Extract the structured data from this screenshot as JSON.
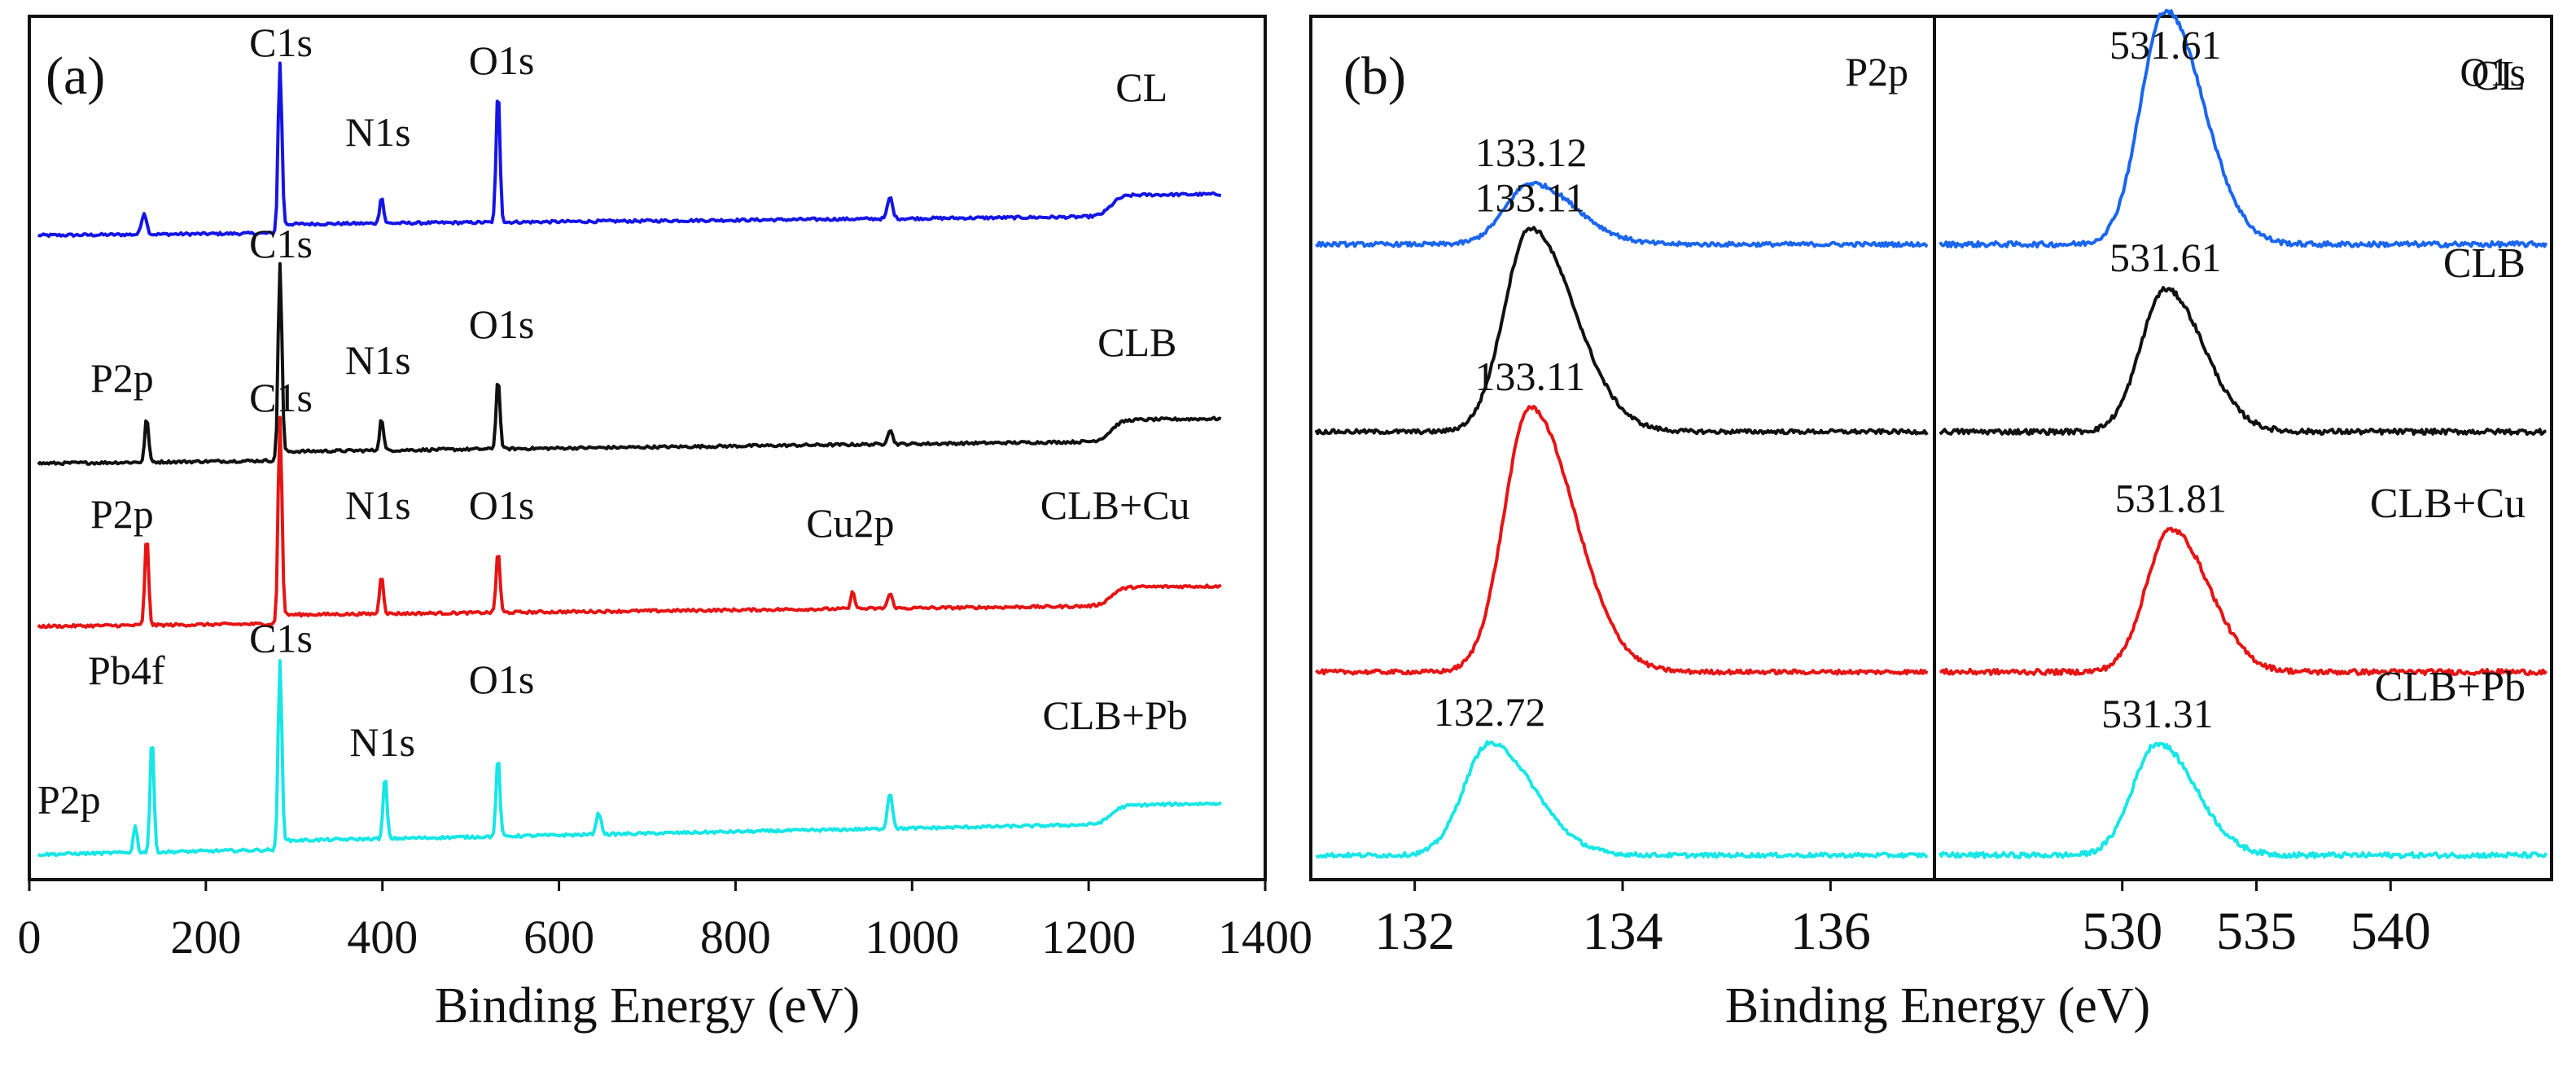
{
  "figure_xlabel": "Binding Energy (eV)",
  "chart_data": [
    {
      "type": "line",
      "panel_label": "(a)",
      "title": "",
      "xlabel": "Binding Energy (eV)",
      "ylabel": "",
      "xlim": [
        0,
        1400
      ],
      "x_ticks": [
        "0",
        "200",
        "400",
        "600",
        "800",
        "1000",
        "1200",
        "1400"
      ],
      "x_tick_values": [
        0,
        200,
        400,
        600,
        800,
        1000,
        1200,
        1400
      ],
      "series": [
        {
          "name": "CL",
          "color": "#1515e6",
          "baseline": 0.05,
          "slope": 0.06,
          "peaks": [
            {
              "label": "C1s",
              "x": 284,
              "height": 0.9
            },
            {
              "label": "N1s",
              "x": 399,
              "height": 0.15
            },
            {
              "label": "O1s",
              "x": 531,
              "height": 0.75
            }
          ],
          "minor_peaks": [
            {
              "x": 130,
              "height": 0.12
            },
            {
              "x": 975,
              "height": 0.12
            },
            {
              "x": 1225,
              "height": 0.4
            }
          ],
          "annotations": [
            {
              "text": "C1s",
              "x": 285,
              "level": 1.05
            },
            {
              "text": "N1s",
              "x": 395,
              "level": 0.55
            },
            {
              "text": "O1s",
              "x": 535,
              "level": 0.95
            },
            {
              "text": "CL",
              "x": 1260,
              "level": 0.8
            }
          ]
        },
        {
          "name": "CLB",
          "color": "#111111",
          "baseline": 0.05,
          "slope": 0.08,
          "peaks": [
            {
              "label": "P2p",
              "x": 133,
              "height": 0.25
            },
            {
              "label": "C1s",
              "x": 284,
              "height": 1.05
            },
            {
              "label": "N1s",
              "x": 399,
              "height": 0.18
            },
            {
              "label": "O1s",
              "x": 531,
              "height": 0.4
            }
          ],
          "minor_peaks": [
            {
              "x": 975,
              "height": 0.08
            },
            {
              "x": 1225,
              "height": 0.4
            }
          ],
          "annotations": [
            {
              "text": "C1s",
              "x": 285,
              "level": 1.2
            },
            {
              "text": "P2p",
              "x": 105,
              "level": 0.45
            },
            {
              "text": "N1s",
              "x": 395,
              "level": 0.55
            },
            {
              "text": "O1s",
              "x": 535,
              "level": 0.75
            },
            {
              "text": "CLB",
              "x": 1255,
              "level": 0.65
            }
          ]
        },
        {
          "name": "CLB+Cu",
          "color": "#e61515",
          "baseline": 0.05,
          "slope": 0.07,
          "peaks": [
            {
              "label": "P2p",
              "x": 133,
              "height": 0.5
            },
            {
              "label": "C1s",
              "x": 284,
              "height": 1.1
            },
            {
              "label": "N1s",
              "x": 399,
              "height": 0.22
            },
            {
              "label": "O1s",
              "x": 531,
              "height": 0.35
            },
            {
              "label": "Cu2p",
              "x": 933,
              "height": 0.1
            }
          ],
          "minor_peaks": [
            {
              "x": 975,
              "height": 0.08
            },
            {
              "x": 1225,
              "height": 0.35
            }
          ],
          "annotations": [
            {
              "text": "C1s",
              "x": 285,
              "level": 1.25
            },
            {
              "text": "P2p",
              "x": 105,
              "level": 0.6
            },
            {
              "text": "N1s",
              "x": 395,
              "level": 0.65
            },
            {
              "text": "O1s",
              "x": 535,
              "level": 0.65
            },
            {
              "text": "Cu2p",
              "x": 930,
              "level": 0.55
            },
            {
              "text": "CLB+Cu",
              "x": 1230,
              "level": 0.65
            }
          ]
        },
        {
          "name": "CLB+Pb",
          "color": "#18e6e6",
          "baseline": 0.05,
          "slope": 0.13,
          "peaks": [
            {
              "label": "P2p",
              "x": 120,
              "height": 0.15
            },
            {
              "label": "Pb4f",
              "x": 139,
              "height": 0.65
            },
            {
              "label": "C1s",
              "x": 284,
              "height": 1.0
            },
            {
              "label": "N1s",
              "x": 403,
              "height": 0.35
            },
            {
              "label": "O1s",
              "x": 531,
              "height": 0.45
            }
          ],
          "minor_peaks": [
            {
              "x": 645,
              "height": 0.12
            },
            {
              "x": 975,
              "height": 0.2
            },
            {
              "x": 1225,
              "height": 0.35
            }
          ],
          "annotations": [
            {
              "text": "C1s",
              "x": 285,
              "level": 1.18
            },
            {
              "text": "Pb4f",
              "x": 110,
              "level": 1.0
            },
            {
              "text": "P2p",
              "x": 45,
              "level": 0.28
            },
            {
              "text": "N1s",
              "x": 400,
              "level": 0.6
            },
            {
              "text": "O1s",
              "x": 535,
              "level": 0.95
            },
            {
              "text": "CLB+Pb",
              "x": 1230,
              "level": 0.75
            }
          ]
        }
      ]
    },
    {
      "type": "line",
      "panel_label": "(b)",
      "title": "P2p",
      "xlabel": "Binding Energy (eV)",
      "ylabel": "",
      "xlim": [
        131,
        137
      ],
      "x_ticks": [
        "132",
        "134",
        "136"
      ],
      "x_tick_values": [
        132,
        134,
        136
      ],
      "series": [
        {
          "name": "CL",
          "color": "#1a66f0",
          "peak": 133.12,
          "peak_label": "133.12",
          "height": 0.3
        },
        {
          "name": "CLB",
          "color": "#111111",
          "peak": 133.11,
          "peak_label": "133.11",
          "height": 1.0
        },
        {
          "name": "CLB+Cu",
          "color": "#e61515",
          "peak": 133.11,
          "peak_label": "133.11",
          "height": 1.3
        },
        {
          "name": "CLB+Pb",
          "color": "#18e6e6",
          "peak": 132.72,
          "peak_label": "132.72",
          "height": 0.55
        }
      ]
    },
    {
      "type": "line",
      "panel_label": "",
      "title": "O1s",
      "xlabel": "Binding Energy (eV)",
      "ylabel": "",
      "xlim": [
        523,
        546
      ],
      "x_ticks": [
        "530",
        "535",
        "540"
      ],
      "x_tick_values": [
        530,
        535,
        540
      ],
      "series": [
        {
          "name": "CL",
          "color": "#1a66f0",
          "peak": 531.61,
          "peak_label": "531.61",
          "height": 1.15
        },
        {
          "name": "CLB",
          "color": "#111111",
          "peak": 531.61,
          "peak_label": "531.61",
          "height": 0.7
        },
        {
          "name": "CLB+Cu",
          "color": "#e61515",
          "peak": 531.81,
          "peak_label": "531.81",
          "height": 0.7
        },
        {
          "name": "CLB+Pb",
          "color": "#18e6e6",
          "peak": 531.31,
          "peak_label": "531.31",
          "height": 0.55
        }
      ]
    }
  ]
}
